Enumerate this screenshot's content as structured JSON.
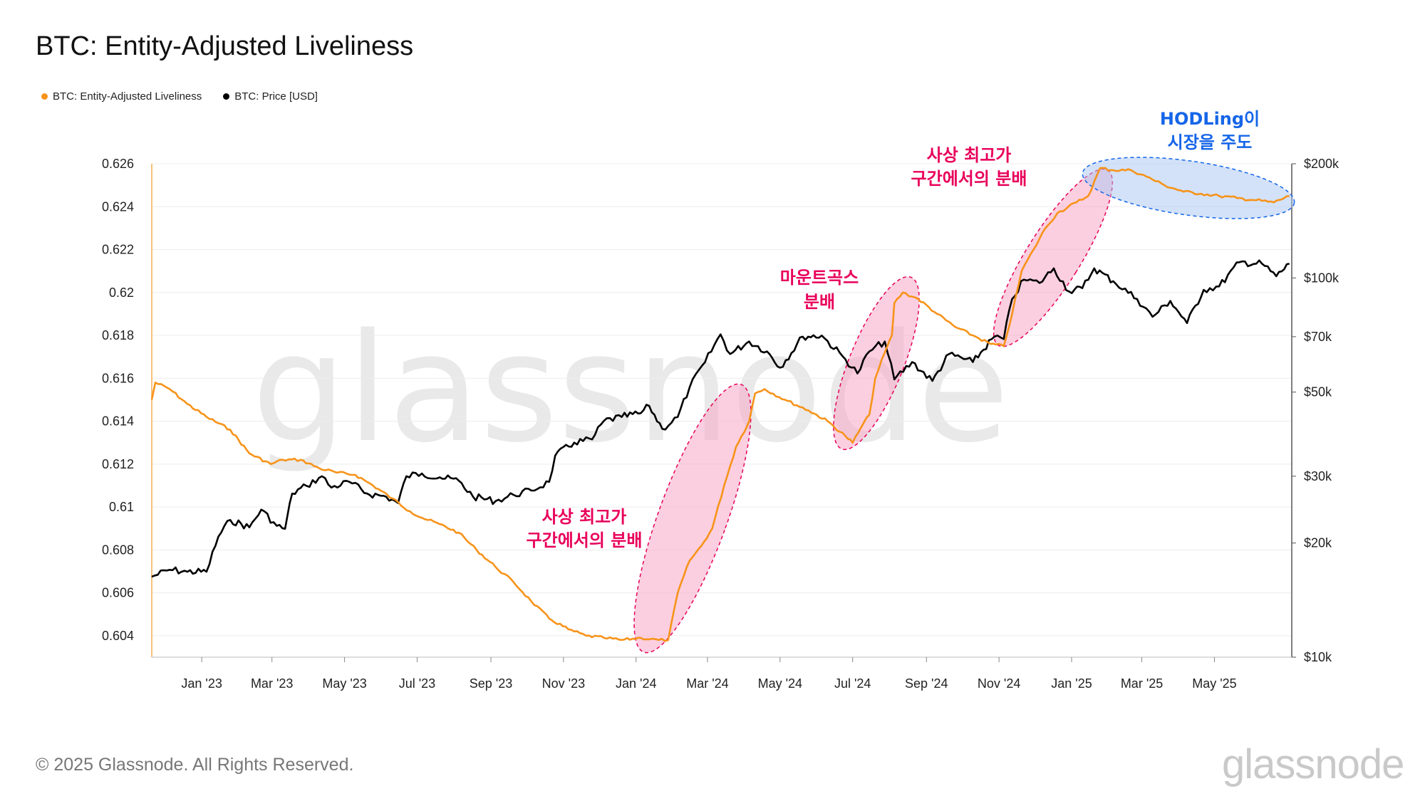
{
  "title": "BTC: Entity-Adjusted Liveliness",
  "legend": [
    {
      "label": "BTC: Entity-Adjusted Liveliness",
      "color": "#f7931a"
    },
    {
      "label": "BTC: Price [USD]",
      "color": "#000000"
    }
  ],
  "footer": "© 2025 Glassnode. All Rights Reserved.",
  "brand": "glassnode",
  "watermark": "glassnode",
  "chart_data": {
    "type": "line",
    "title": "BTC: Entity-Adjusted Liveliness",
    "x_ticks": [
      "Jan '23",
      "Mar '23",
      "May '23",
      "Jul '23",
      "Sep '23",
      "Nov '23",
      "Jan '24",
      "Mar '24",
      "May '24",
      "Jul '24",
      "Sep '24",
      "Nov '24",
      "Jan '25",
      "Mar '25",
      "May '25"
    ],
    "x_range": [
      "2022-11-20",
      "2025-07-05"
    ],
    "left_axis": {
      "ticks": [
        "0.626",
        "0.624",
        "0.622",
        "0.62",
        "0.618",
        "0.616",
        "0.614",
        "0.612",
        "0.61",
        "0.608",
        "0.606",
        "0.604"
      ],
      "ylim": [
        0.603,
        0.626
      ]
    },
    "right_axis": {
      "scale": "log",
      "ticks": [
        "$200k",
        "$100k",
        "$70k",
        "$50k",
        "$30k",
        "$20k",
        "$10k"
      ],
      "tick_values": [
        200000,
        100000,
        70000,
        50000,
        30000,
        20000,
        10000
      ],
      "ylim": [
        10000,
        200000
      ]
    },
    "series": [
      {
        "name": "BTC: Entity-Adjusted Liveliness",
        "axis": "left",
        "color": "#f7931a",
        "points": [
          [
            "2022-11-20",
            0.615
          ],
          [
            "2022-11-23",
            0.6158
          ],
          [
            "2022-12-05",
            0.6155
          ],
          [
            "2022-12-20",
            0.6148
          ],
          [
            "2023-01-05",
            0.6142
          ],
          [
            "2023-01-25",
            0.6136
          ],
          [
            "2023-02-10",
            0.6125
          ],
          [
            "2023-02-28",
            0.612
          ],
          [
            "2023-03-10",
            0.6122
          ],
          [
            "2023-03-25",
            0.6122
          ],
          [
            "2023-04-10",
            0.6118
          ],
          [
            "2023-04-25",
            0.6116
          ],
          [
            "2023-05-10",
            0.6115
          ],
          [
            "2023-05-25",
            0.611
          ],
          [
            "2023-06-10",
            0.6104
          ],
          [
            "2023-06-25",
            0.6098
          ],
          [
            "2023-07-05",
            0.6095
          ],
          [
            "2023-07-20",
            0.6092
          ],
          [
            "2023-08-05",
            0.6088
          ],
          [
            "2023-08-20",
            0.608
          ],
          [
            "2023-09-05",
            0.6072
          ],
          [
            "2023-09-20",
            0.6065
          ],
          [
            "2023-10-05",
            0.6056
          ],
          [
            "2023-10-20",
            0.6048
          ],
          [
            "2023-11-05",
            0.6043
          ],
          [
            "2023-11-20",
            0.604
          ],
          [
            "2023-12-05",
            0.6039
          ],
          [
            "2023-12-20",
            0.6038
          ],
          [
            "2024-01-05",
            0.6039
          ],
          [
            "2024-01-20",
            0.6038
          ],
          [
            "2024-01-28",
            0.6038
          ],
          [
            "2024-02-05",
            0.606
          ],
          [
            "2024-02-15",
            0.6075
          ],
          [
            "2024-02-25",
            0.6082
          ],
          [
            "2024-03-05",
            0.609
          ],
          [
            "2024-03-15",
            0.611
          ],
          [
            "2024-03-25",
            0.6128
          ],
          [
            "2024-04-05",
            0.614
          ],
          [
            "2024-04-10",
            0.6153
          ],
          [
            "2024-04-18",
            0.6155
          ],
          [
            "2024-05-05",
            0.615
          ],
          [
            "2024-05-25",
            0.6145
          ],
          [
            "2024-06-10",
            0.614
          ],
          [
            "2024-06-25",
            0.6133
          ],
          [
            "2024-07-01",
            0.613
          ],
          [
            "2024-07-08",
            0.6137
          ],
          [
            "2024-07-15",
            0.6143
          ],
          [
            "2024-07-20",
            0.616
          ],
          [
            "2024-07-28",
            0.6172
          ],
          [
            "2024-08-03",
            0.618
          ],
          [
            "2024-08-05",
            0.6195
          ],
          [
            "2024-08-12",
            0.62
          ],
          [
            "2024-08-25",
            0.6197
          ],
          [
            "2024-09-10",
            0.619
          ],
          [
            "2024-09-25",
            0.6184
          ],
          [
            "2024-10-10",
            0.618
          ],
          [
            "2024-10-25",
            0.6176
          ],
          [
            "2024-11-05",
            0.6175
          ],
          [
            "2024-11-12",
            0.619
          ],
          [
            "2024-11-20",
            0.621
          ],
          [
            "2024-11-30",
            0.622
          ],
          [
            "2024-12-10",
            0.623
          ],
          [
            "2024-12-20",
            0.6237
          ],
          [
            "2025-01-05",
            0.6242
          ],
          [
            "2025-01-15",
            0.6245
          ],
          [
            "2025-01-25",
            0.6258
          ],
          [
            "2025-02-05",
            0.6257
          ],
          [
            "2025-02-20",
            0.6257
          ],
          [
            "2025-03-05",
            0.6254
          ],
          [
            "2025-03-20",
            0.625
          ],
          [
            "2025-04-05",
            0.6247
          ],
          [
            "2025-04-20",
            0.6246
          ],
          [
            "2025-05-05",
            0.6245
          ],
          [
            "2025-05-20",
            0.6244
          ],
          [
            "2025-06-05",
            0.6243
          ],
          [
            "2025-06-20",
            0.6242
          ],
          [
            "2025-07-03",
            0.6245
          ]
        ]
      },
      {
        "name": "BTC: Price [USD]",
        "axis": "right",
        "color": "#000000",
        "points": [
          [
            "2022-11-20",
            16300
          ],
          [
            "2022-12-05",
            17000
          ],
          [
            "2022-12-20",
            16800
          ],
          [
            "2023-01-05",
            16800
          ],
          [
            "2023-01-15",
            20800
          ],
          [
            "2023-01-25",
            23000
          ],
          [
            "2023-02-10",
            22000
          ],
          [
            "2023-02-20",
            24500
          ],
          [
            "2023-03-05",
            22200
          ],
          [
            "2023-03-12",
            21800
          ],
          [
            "2023-03-18",
            27000
          ],
          [
            "2023-03-30",
            28300
          ],
          [
            "2023-04-12",
            30000
          ],
          [
            "2023-04-20",
            28000
          ],
          [
            "2023-05-05",
            29000
          ],
          [
            "2023-05-20",
            27000
          ],
          [
            "2023-06-05",
            26500
          ],
          [
            "2023-06-15",
            25500
          ],
          [
            "2023-06-22",
            30000
          ],
          [
            "2023-07-05",
            30500
          ],
          [
            "2023-07-20",
            29800
          ],
          [
            "2023-08-05",
            29200
          ],
          [
            "2023-08-17",
            26500
          ],
          [
            "2023-09-05",
            25800
          ],
          [
            "2023-09-20",
            26800
          ],
          [
            "2023-10-05",
            27500
          ],
          [
            "2023-10-20",
            29000
          ],
          [
            "2023-10-25",
            34000
          ],
          [
            "2023-11-10",
            36800
          ],
          [
            "2023-11-25",
            37500
          ],
          [
            "2023-12-05",
            42000
          ],
          [
            "2023-12-20",
            43000
          ],
          [
            "2024-01-05",
            44000
          ],
          [
            "2024-01-12",
            46000
          ],
          [
            "2024-01-23",
            40000
          ],
          [
            "2024-02-05",
            43000
          ],
          [
            "2024-02-15",
            51500
          ],
          [
            "2024-02-28",
            60000
          ],
          [
            "2024-03-12",
            71000
          ],
          [
            "2024-03-20",
            63000
          ],
          [
            "2024-04-05",
            68000
          ],
          [
            "2024-04-20",
            64000
          ],
          [
            "2024-05-01",
            58000
          ],
          [
            "2024-05-20",
            70000
          ],
          [
            "2024-06-05",
            70500
          ],
          [
            "2024-06-25",
            61000
          ],
          [
            "2024-07-05",
            56000
          ],
          [
            "2024-07-15",
            64000
          ],
          [
            "2024-07-28",
            68000
          ],
          [
            "2024-08-05",
            54000
          ],
          [
            "2024-08-20",
            60000
          ],
          [
            "2024-09-06",
            53500
          ],
          [
            "2024-09-20",
            63000
          ],
          [
            "2024-10-10",
            60000
          ],
          [
            "2024-10-28",
            70000
          ],
          [
            "2024-11-05",
            69000
          ],
          [
            "2024-11-12",
            88000
          ],
          [
            "2024-11-22",
            99000
          ],
          [
            "2024-12-05",
            97000
          ],
          [
            "2024-12-17",
            106000
          ],
          [
            "2024-12-30",
            92000
          ],
          [
            "2025-01-10",
            94000
          ],
          [
            "2025-01-20",
            106000
          ],
          [
            "2025-02-05",
            98000
          ],
          [
            "2025-02-25",
            88000
          ],
          [
            "2025-03-10",
            79000
          ],
          [
            "2025-03-25",
            87000
          ],
          [
            "2025-04-08",
            76000
          ],
          [
            "2025-04-22",
            93000
          ],
          [
            "2025-05-05",
            95000
          ],
          [
            "2025-05-22",
            110000
          ],
          [
            "2025-06-10",
            109000
          ],
          [
            "2025-06-22",
            101000
          ],
          [
            "2025-07-03",
            109000
          ]
        ]
      }
    ],
    "annotations": [
      {
        "text": [
          "사상 최고가",
          "구간에서의 분배"
        ],
        "color": "#e8005a"
      },
      {
        "text": [
          "마운트곡스",
          "분배"
        ],
        "color": "#e8005a"
      },
      {
        "text": [
          "사상 최고가",
          "구간에서의 분배"
        ],
        "color": "#e8005a"
      },
      {
        "text": [
          "HODLing이",
          "시장을 주도"
        ],
        "color": "#1565e8"
      }
    ]
  }
}
